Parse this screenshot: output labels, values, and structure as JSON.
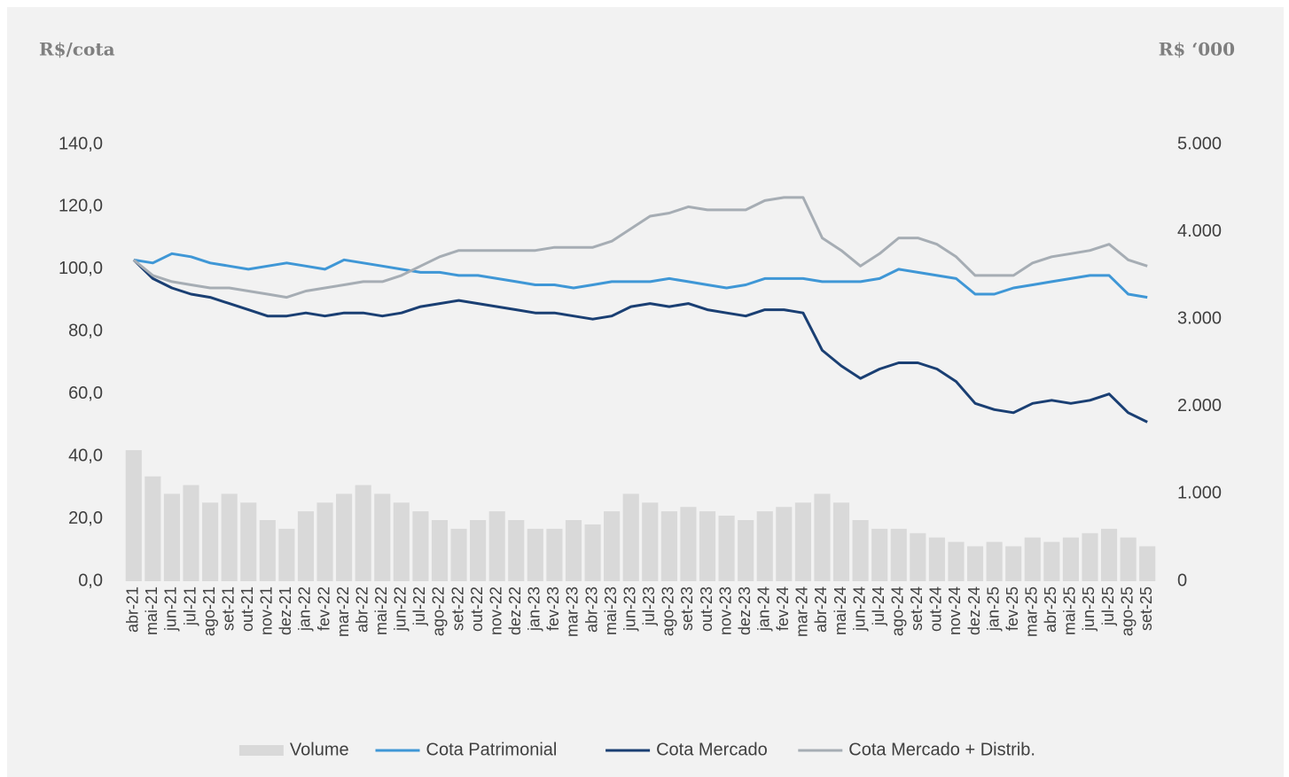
{
  "chart_data": {
    "type": "line",
    "y_axis_label": "R$/cota",
    "y2_axis_label": "R$ ‘000",
    "categories": [
      "abr-21",
      "mai-21",
      "jun-21",
      "jul-21",
      "ago-21",
      "set-21",
      "out-21",
      "nov-21",
      "dez-21",
      "jan-22",
      "fev-22",
      "mar-22",
      "abr-22",
      "mai-22",
      "jun-22",
      "jul-22",
      "ago-22",
      "set-22",
      "out-22",
      "nov-22",
      "dez-22",
      "jan-23",
      "fev-23",
      "mar-23",
      "abr-23",
      "mai-23",
      "jun-23",
      "jul-23",
      "ago-23",
      "set-23",
      "out-23",
      "nov-23",
      "dez-23",
      "jan-24",
      "fev-24",
      "mar-24",
      "abr-24",
      "mai-24",
      "jun-24",
      "jul-24",
      "ago-24",
      "set-24",
      "out-24",
      "nov-24",
      "dez-24",
      "jan-25",
      "fev-25",
      "mar-25",
      "abr-25",
      "mai-25",
      "jun-25",
      "jul-25",
      "ago-25",
      "set-25"
    ],
    "series": [
      {
        "name": "Volume",
        "type": "bar",
        "axis": "y2",
        "color": "#d9d9d9",
        "values": [
          1500,
          1200,
          1000,
          1100,
          900,
          1000,
          900,
          700,
          600,
          800,
          900,
          1000,
          1100,
          1000,
          900,
          800,
          700,
          600,
          700,
          800,
          700,
          600,
          600,
          700,
          650,
          800,
          1000,
          900,
          800,
          850,
          800,
          750,
          700,
          800,
          850,
          900,
          1000,
          900,
          700,
          600,
          600,
          550,
          500,
          450,
          400,
          450,
          400,
          500,
          450,
          500,
          550,
          600,
          500,
          400
        ]
      },
      {
        "name": "Cota Patrimonial",
        "color": "#3f97d6",
        "values": [
          103,
          102,
          105,
          104,
          102,
          101,
          100,
          101,
          102,
          101,
          100,
          103,
          102,
          101,
          100,
          99,
          99,
          98,
          98,
          97,
          96,
          95,
          95,
          94,
          95,
          96,
          96,
          96,
          97,
          96,
          95,
          94,
          95,
          97,
          97,
          97,
          96,
          96,
          96,
          97,
          100,
          99,
          98,
          97,
          92,
          92,
          94,
          95,
          96,
          97,
          98,
          98,
          92,
          91
        ]
      },
      {
        "name": "Cota Mercado",
        "color": "#1a3f73",
        "values": [
          103,
          97,
          94,
          92,
          91,
          89,
          87,
          85,
          85,
          86,
          85,
          86,
          86,
          85,
          86,
          88,
          89,
          90,
          89,
          88,
          87,
          86,
          86,
          85,
          84,
          85,
          88,
          89,
          88,
          89,
          87,
          86,
          85,
          87,
          87,
          86,
          74,
          69,
          65,
          68,
          70,
          70,
          68,
          64,
          57,
          55,
          54,
          57,
          58,
          57,
          58,
          60,
          54,
          51
        ]
      },
      {
        "name": "Cota Mercado + Distrib.",
        "color": "#a6adb4",
        "values": [
          103,
          98,
          96,
          95,
          94,
          94,
          93,
          92,
          91,
          93,
          94,
          95,
          96,
          96,
          98,
          101,
          104,
          106,
          106,
          106,
          106,
          106,
          107,
          107,
          107,
          109,
          113,
          117,
          118,
          120,
          119,
          119,
          119,
          122,
          123,
          123,
          110,
          106,
          101,
          105,
          110,
          110,
          108,
          104,
          98,
          98,
          98,
          102,
          104,
          105,
          106,
          108,
          103,
          101
        ]
      }
    ],
    "ylim": [
      0,
      140
    ],
    "yticks": [
      {
        "value": 0,
        "label": "0,0"
      },
      {
        "value": 20,
        "label": "20,0"
      },
      {
        "value": 40,
        "label": "40,0"
      },
      {
        "value": 60,
        "label": "60,0"
      },
      {
        "value": 80,
        "label": "80,0"
      },
      {
        "value": 100,
        "label": "100,0"
      },
      {
        "value": 120,
        "label": "120,0"
      },
      {
        "value": 140,
        "label": "140,0"
      }
    ],
    "y2lim": [
      0,
      5000
    ],
    "y2ticks": [
      0,
      {
        "value": 1000,
        "label": "1.000"
      },
      {
        "value": 2000,
        "label": "2.000"
      },
      {
        "value": 3000,
        "label": "3.000"
      },
      {
        "value": 4000,
        "label": "4.000"
      },
      {
        "value": 5000,
        "label": "5.000"
      }
    ],
    "legend": "bottom"
  }
}
